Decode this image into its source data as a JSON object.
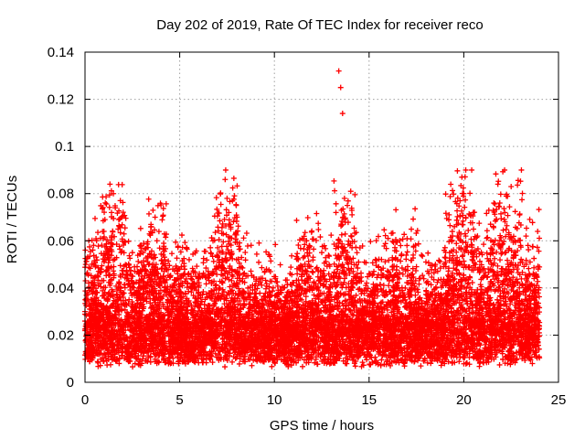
{
  "chart_data": {
    "type": "scatter",
    "title": "Day 202 of 2019, Rate Of TEC Index for receiver reco",
    "xlabel": "GPS time / hours",
    "ylabel": "ROTI / TECUs",
    "xlim": [
      0,
      25
    ],
    "ylim": [
      0,
      0.14
    ],
    "xticks": [
      0,
      5,
      10,
      15,
      20,
      25
    ],
    "xtick_labels": [
      "0",
      "5",
      "10",
      "15",
      "20",
      "25"
    ],
    "yticks": [
      0,
      0.02,
      0.04,
      0.06,
      0.08,
      0.1,
      0.12,
      0.14
    ],
    "ytick_labels": [
      "0",
      "0.02",
      "0.04",
      "0.06",
      "0.08",
      "0.1",
      "0.12",
      "0.14"
    ],
    "grid": true,
    "marker": "plus",
    "marker_color": "#ff0000",
    "series": [
      {
        "name": "ROTI",
        "x": [
          0.0,
          0.1,
          0.2,
          0.3,
          0.4,
          0.5,
          0.7,
          1.0,
          1.2,
          1.4,
          1.5,
          1.6,
          2.0,
          2.5,
          3.0,
          3.5,
          3.7,
          3.8,
          4.0,
          4.5,
          5.0,
          5.5,
          6.0,
          6.5,
          7.0,
          7.3,
          7.4,
          7.5,
          7.6,
          8.0,
          8.5,
          9.0,
          9.5,
          10.0,
          10.5,
          11.0,
          11.5,
          11.7,
          12.0,
          12.5,
          13.0,
          13.4,
          13.5,
          13.6,
          13.7,
          14.0,
          14.5,
          15.0,
          15.5,
          16.0,
          16.5,
          17.0,
          17.5,
          18.0,
          18.5,
          19.0,
          19.5,
          19.8,
          19.9,
          20.0,
          20.1,
          20.5,
          21.0,
          21.5,
          21.8,
          21.9,
          22.5,
          23.0,
          23.5,
          23.9
        ],
        "y": [
          0.03,
          0.046,
          0.06,
          0.035,
          0.042,
          0.028,
          0.041,
          0.064,
          0.053,
          0.072,
          0.08,
          0.074,
          0.038,
          0.055,
          0.045,
          0.066,
          0.07,
          0.06,
          0.039,
          0.045,
          0.048,
          0.052,
          0.044,
          0.047,
          0.053,
          0.063,
          0.086,
          0.078,
          0.055,
          0.052,
          0.045,
          0.041,
          0.047,
          0.034,
          0.04,
          0.038,
          0.049,
          0.06,
          0.047,
          0.055,
          0.045,
          0.132,
          0.125,
          0.114,
          0.078,
          0.058,
          0.044,
          0.046,
          0.049,
          0.061,
          0.052,
          0.058,
          0.049,
          0.051,
          0.05,
          0.053,
          0.066,
          0.077,
          0.087,
          0.08,
          0.062,
          0.054,
          0.048,
          0.055,
          0.084,
          0.076,
          0.083,
          0.058,
          0.051,
          0.064
        ]
      }
    ]
  }
}
